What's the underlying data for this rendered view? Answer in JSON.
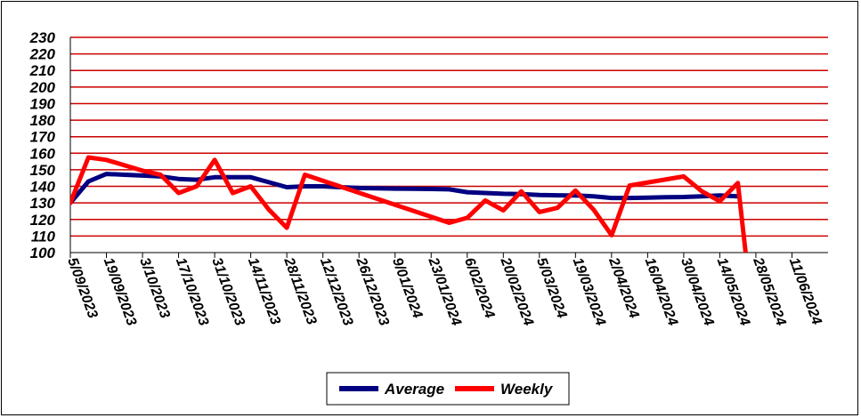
{
  "chart_data": {
    "type": "line",
    "ylim": [
      100,
      230
    ],
    "yticks": [
      100,
      110,
      120,
      130,
      140,
      150,
      160,
      170,
      180,
      190,
      200,
      210,
      220,
      230
    ],
    "xlim": [
      "2023-09-05",
      "2024-06-25"
    ],
    "xtick_dates": [
      "2023-09-05",
      "2023-09-19",
      "2023-10-03",
      "2023-10-17",
      "2023-10-31",
      "2023-11-14",
      "2023-11-28",
      "2023-12-12",
      "2023-12-26",
      "2024-01-09",
      "2024-01-23",
      "2024-02-06",
      "2024-02-20",
      "2024-03-05",
      "2024-03-19",
      "2024-04-02",
      "2024-04-16",
      "2024-04-30",
      "2024-05-14",
      "2024-05-28",
      "2024-06-11"
    ],
    "xtick_labels": [
      "5/09/2023",
      "19/09/2023",
      "3/10/2023",
      "17/10/2023",
      "31/10/2023",
      "14/11/2023",
      "28/11/2023",
      "12/12/2023",
      "26/12/2023",
      "9/01/2024",
      "23/01/2024",
      "6/02/2024",
      "20/02/2024",
      "5/03/2024",
      "19/03/2024",
      "2/04/2024",
      "16/04/2024",
      "30/04/2024",
      "14/05/2024",
      "28/05/2024",
      "11/06/2024"
    ],
    "grid": true,
    "legend_position": "bottom",
    "colors": {
      "Average": "#000080",
      "Weekly": "#ff0000",
      "grid": "#cc0000"
    },
    "series": [
      {
        "name": "Average",
        "points": [
          [
            "2023-09-05",
            130
          ],
          [
            "2023-09-12",
            143
          ],
          [
            "2023-09-19",
            147.5
          ],
          [
            "2023-09-26",
            147
          ],
          [
            "2023-10-03",
            146.5
          ],
          [
            "2023-10-10",
            146
          ],
          [
            "2023-10-17",
            144.5
          ],
          [
            "2023-10-24",
            144
          ],
          [
            "2023-10-31",
            145.5
          ],
          [
            "2023-11-07",
            145.5
          ],
          [
            "2023-11-14",
            145.5
          ],
          [
            "2023-11-21",
            142.5
          ],
          [
            "2023-11-28",
            139.5
          ],
          [
            "2023-12-05",
            140
          ],
          [
            "2023-12-12",
            140
          ],
          [
            "2023-12-19",
            139.5
          ],
          [
            "2023-12-26",
            139
          ],
          [
            "2024-01-02",
            138.8
          ],
          [
            "2024-01-09",
            138.6
          ],
          [
            "2024-01-16",
            138.5
          ],
          [
            "2024-01-23",
            138.4
          ],
          [
            "2024-01-30",
            138.2
          ],
          [
            "2024-02-06",
            136.5
          ],
          [
            "2024-02-13",
            136
          ],
          [
            "2024-02-20",
            135.5
          ],
          [
            "2024-02-27",
            135.3
          ],
          [
            "2024-03-05",
            134.8
          ],
          [
            "2024-03-12",
            134.6
          ],
          [
            "2024-03-19",
            134.5
          ],
          [
            "2024-03-26",
            134
          ],
          [
            "2024-04-02",
            133
          ],
          [
            "2024-04-09",
            133
          ],
          [
            "2024-04-16",
            133.2
          ],
          [
            "2024-04-23",
            133.4
          ],
          [
            "2024-04-30",
            133.6
          ],
          [
            "2024-05-07",
            134
          ],
          [
            "2024-05-14",
            134.5
          ],
          [
            "2024-05-21",
            134
          ]
        ]
      },
      {
        "name": "Weekly",
        "points": [
          [
            "2023-09-05",
            130
          ],
          [
            "2023-09-12",
            157.5
          ],
          [
            "2023-09-19",
            156
          ],
          [
            "2023-10-03",
            149.5
          ],
          [
            "2023-10-10",
            147
          ],
          [
            "2023-10-17",
            136
          ],
          [
            "2023-10-24",
            140
          ],
          [
            "2023-10-31",
            156
          ],
          [
            "2023-11-07",
            136
          ],
          [
            "2023-11-14",
            140
          ],
          [
            "2023-11-21",
            126
          ],
          [
            "2023-11-28",
            115
          ],
          [
            "2023-12-05",
            147
          ],
          [
            "2024-01-30",
            118
          ],
          [
            "2024-02-06",
            121
          ],
          [
            "2024-02-13",
            131.5
          ],
          [
            "2024-02-20",
            125.5
          ],
          [
            "2024-02-27",
            137
          ],
          [
            "2024-03-05",
            124.5
          ],
          [
            "2024-03-12",
            127
          ],
          [
            "2024-03-19",
            137.5
          ],
          [
            "2024-03-26",
            126
          ],
          [
            "2024-04-02",
            110.5
          ],
          [
            "2024-04-09",
            140.5
          ],
          [
            "2024-04-30",
            146
          ],
          [
            "2024-05-07",
            137
          ],
          [
            "2024-05-14",
            131
          ],
          [
            "2024-05-21",
            142
          ],
          [
            "2024-05-24",
            100
          ]
        ]
      }
    ]
  }
}
